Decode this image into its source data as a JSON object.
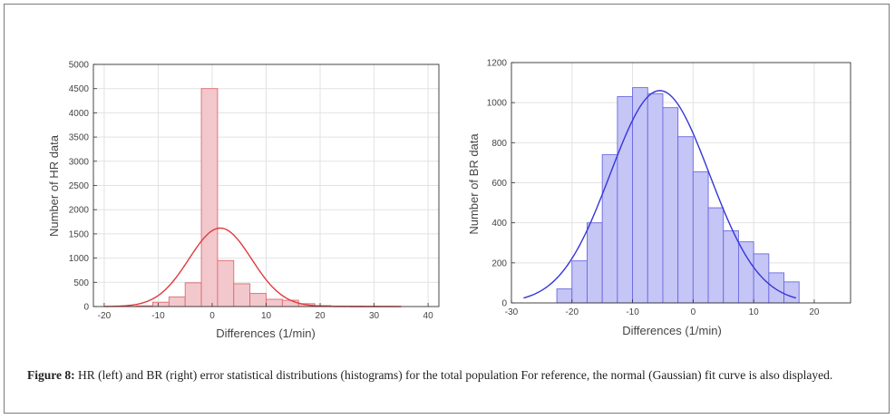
{
  "caption": {
    "label": "Figure 8:",
    "text": "HR (left) and BR (right) error statistical distributions (histograms) for the total population For reference, the normal (Gaussian) fit curve is also displayed."
  },
  "chart_data": [
    {
      "type": "bar",
      "histogram": true,
      "xlabel": "Differences (1/min)",
      "ylabel": "Number of HR data",
      "xlim": [
        -22,
        42
      ],
      "ylim": [
        0,
        5000
      ],
      "xticks": [
        -20,
        -10,
        0,
        10,
        20,
        30,
        40
      ],
      "yticks": [
        0,
        500,
        1000,
        1500,
        2000,
        2500,
        3000,
        3500,
        4000,
        4500,
        5000
      ],
      "grid": true,
      "bin_width": 3,
      "bin_starts": [
        -17,
        -14,
        -11,
        -8,
        -5,
        -2,
        1,
        4,
        7,
        10,
        13,
        16,
        19,
        22,
        25,
        28,
        31
      ],
      "values": [
        5,
        15,
        90,
        200,
        490,
        4500,
        950,
        470,
        270,
        150,
        130,
        60,
        20,
        10,
        8,
        5,
        3
      ],
      "bar_fill": "#f2c8cc",
      "bar_stroke": "#e06a70",
      "fit_curve": {
        "type": "gaussian",
        "mean": 1.5,
        "sd": 5.8,
        "peak": 1620,
        "x_range": [
          -20,
          35
        ],
        "color": "#e03a3e"
      }
    },
    {
      "type": "bar",
      "histogram": true,
      "xlabel": "Differences (1/min)",
      "ylabel": "Number of BR data",
      "xlim": [
        -30,
        26
      ],
      "ylim": [
        0,
        1200
      ],
      "xticks": [
        -30,
        -20,
        -10,
        0,
        10,
        20
      ],
      "yticks": [
        0,
        200,
        400,
        600,
        800,
        1000,
        1200
      ],
      "grid": true,
      "bin_width": 2.5,
      "bin_starts": [
        -22.5,
        -20,
        -17.5,
        -15,
        -12.5,
        -10,
        -7.5,
        -5,
        -2.5,
        0,
        2.5,
        5,
        7.5,
        10,
        12.5,
        15
      ],
      "values": [
        70,
        210,
        400,
        740,
        1030,
        1075,
        1045,
        975,
        830,
        655,
        475,
        360,
        305,
        245,
        150,
        105
      ],
      "bar_fill": "#c5c5f6",
      "bar_stroke": "#6a6ae0",
      "fit_curve": {
        "type": "gaussian",
        "mean": -5.5,
        "sd": 8.2,
        "peak": 1060,
        "x_range": [
          -28,
          17
        ],
        "color": "#3636d8"
      }
    }
  ]
}
